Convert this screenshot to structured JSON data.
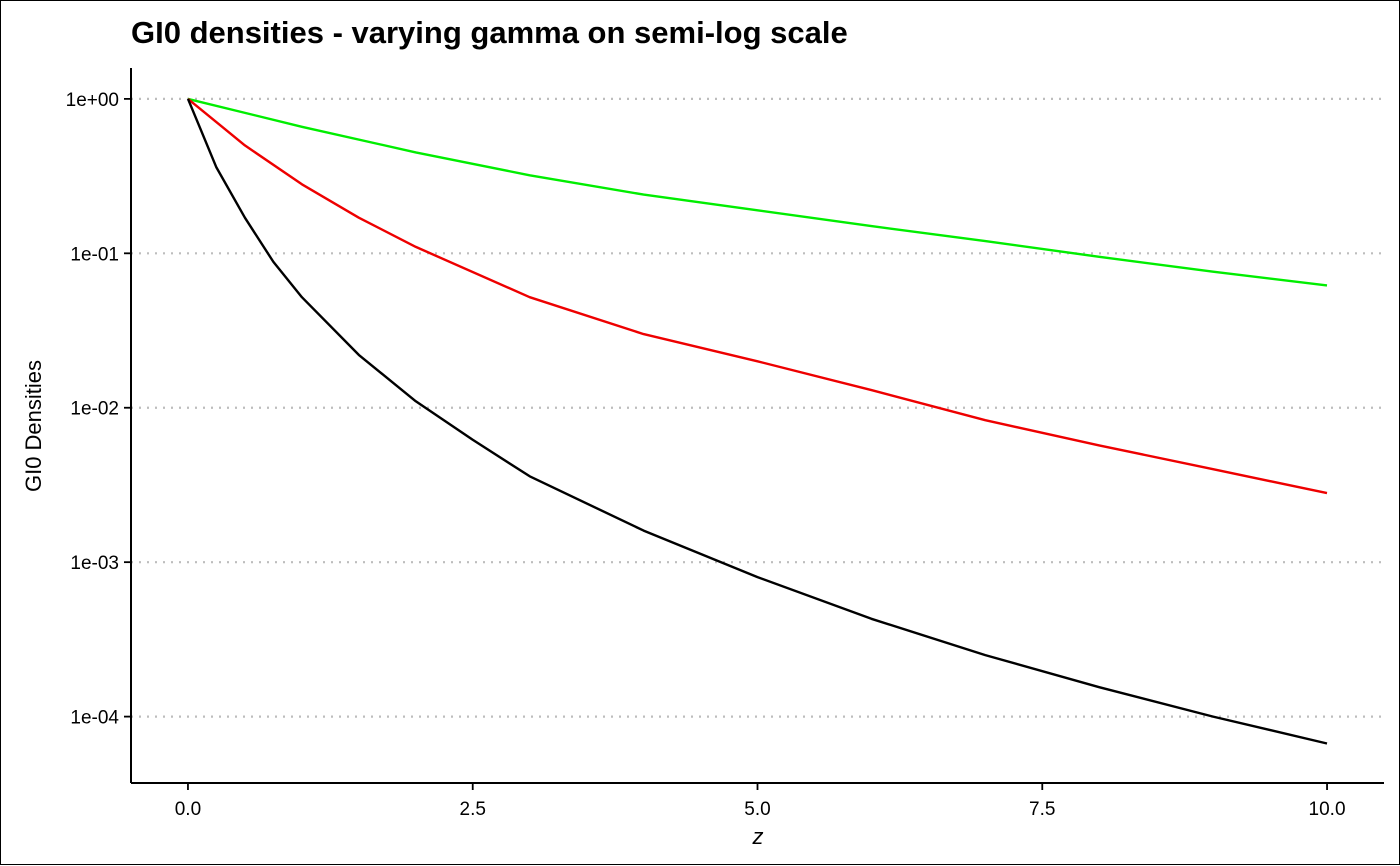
{
  "chart_data": {
    "type": "line",
    "title": "GI0 densities - varying gamma on semi-log scale",
    "xlabel": "z",
    "ylabel": "GI0 Densities",
    "xlim": [
      -0.5,
      10.5
    ],
    "ylim_log10": [
      -4.43,
      0.2
    ],
    "y_scale": "log10",
    "x_ticks": [
      0,
      2.5,
      5,
      7.5,
      10
    ],
    "x_tick_labels": [
      "0.0",
      "2.5",
      "5.0",
      "7.5",
      "10.0"
    ],
    "y_ticks": [
      1,
      0.1,
      0.01,
      0.001,
      0.0001
    ],
    "y_tick_labels": [
      "1e+00",
      "1e-01",
      "1e-02",
      "1e-03",
      "1e-04"
    ],
    "grid": "horizontal dotted major lines",
    "legend": "none",
    "series": [
      {
        "color": "#00ee00",
        "x": [
          0,
          1,
          2,
          3,
          4,
          5,
          6,
          7,
          8,
          9,
          10
        ],
        "y": [
          1.0,
          0.66,
          0.45,
          0.32,
          0.24,
          0.19,
          0.15,
          0.12,
          0.095,
          0.076,
          0.062
        ]
      },
      {
        "color": "#ee0000",
        "x": [
          0,
          0.5,
          1,
          1.5,
          2,
          3,
          4,
          5,
          6,
          7,
          8,
          9,
          10
        ],
        "y": [
          1.0,
          0.5,
          0.28,
          0.17,
          0.11,
          0.052,
          0.03,
          0.02,
          0.013,
          0.0083,
          0.0057,
          0.004,
          0.0028
        ]
      },
      {
        "color": "#000000",
        "x": [
          0,
          0.25,
          0.5,
          0.75,
          1,
          1.5,
          2,
          2.5,
          3,
          4,
          5,
          6,
          7,
          8,
          9,
          10
        ],
        "y": [
          1.0,
          0.36,
          0.17,
          0.088,
          0.052,
          0.022,
          0.011,
          0.0062,
          0.0036,
          0.0016,
          0.0008,
          0.00043,
          0.00025,
          0.000155,
          0.0001,
          6.7e-05
        ]
      }
    ]
  }
}
